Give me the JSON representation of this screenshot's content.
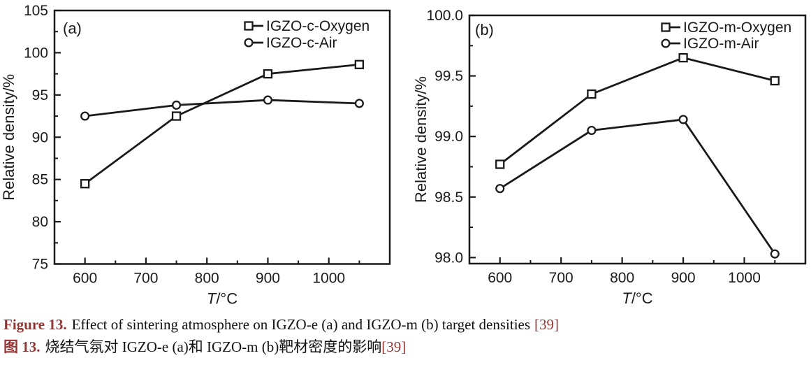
{
  "caption": {
    "accent_color": "#943634",
    "en": {
      "label": "Figure 13.",
      "text": "Effect of sintering atmosphere on IGZO-e (a) and IGZO-m (b) target densities",
      "ref": "[39]"
    },
    "zh": {
      "label": "图 13.",
      "text": "烧结气氛对 IGZO-e (a)和 IGZO-m (b)靶材密度的影响",
      "ref": "[39]"
    }
  },
  "chart_data": [
    {
      "type": "line",
      "panel_label": "(a)",
      "title": "",
      "xlabel": "T/°C",
      "xlabel_var": "T",
      "xlabel_unit": "/°C",
      "ylabel": "Relative density/%",
      "x": [
        600,
        750,
        900,
        1050
      ],
      "series": [
        {
          "name": "IGZO-c-Oxygen",
          "marker": "square",
          "values": [
            84.5,
            92.5,
            97.5,
            98.6
          ]
        },
        {
          "name": "IGZO-c-Air",
          "marker": "circle",
          "values": [
            92.5,
            93.8,
            94.4,
            94.0
          ]
        }
      ],
      "xlim": [
        550,
        1100
      ],
      "ylim": [
        75,
        105
      ],
      "xticks": [
        600,
        700,
        800,
        900,
        1000
      ],
      "xtick_labels": [
        "600",
        "700",
        "800",
        "900",
        "1000"
      ],
      "yticks": [
        75,
        80,
        85,
        90,
        95,
        100,
        105
      ],
      "ytick_labels": [
        "75",
        "80",
        "85",
        "90",
        "95",
        "100",
        "105"
      ],
      "x_minor_step": 50,
      "y_minor_step": 2.5,
      "grid": false,
      "legend_position": "top-right-inside",
      "marker_style": "open",
      "ink_color": "#1a1a1a",
      "background_color": "#ffffff"
    },
    {
      "type": "line",
      "panel_label": "(b)",
      "title": "",
      "xlabel": "T/°C",
      "xlabel_var": "T",
      "xlabel_unit": "/°C",
      "ylabel": "Relative density/%",
      "x": [
        600,
        750,
        900,
        1050
      ],
      "series": [
        {
          "name": "IGZO-m-Oxygen",
          "marker": "square",
          "values": [
            98.77,
            99.35,
            99.65,
            99.46
          ]
        },
        {
          "name": "IGZO-m-Air",
          "marker": "circle",
          "values": [
            98.57,
            99.05,
            99.14,
            98.03
          ]
        }
      ],
      "xlim": [
        550,
        1100
      ],
      "ylim": [
        97.95,
        100.0
      ],
      "xticks": [
        600,
        700,
        800,
        900,
        1000
      ],
      "xtick_labels": [
        "600",
        "700",
        "800",
        "900",
        "1000"
      ],
      "yticks": [
        98.0,
        98.5,
        99.0,
        99.5,
        100.0
      ],
      "ytick_labels": [
        "98.0",
        "98.5",
        "99.0",
        "99.5",
        "100.0"
      ],
      "x_minor_step": 50,
      "y_minor_step": 0.25,
      "grid": false,
      "legend_position": "top-right-inside",
      "marker_style": "open",
      "ink_color": "#1a1a1a",
      "background_color": "#ffffff"
    }
  ]
}
